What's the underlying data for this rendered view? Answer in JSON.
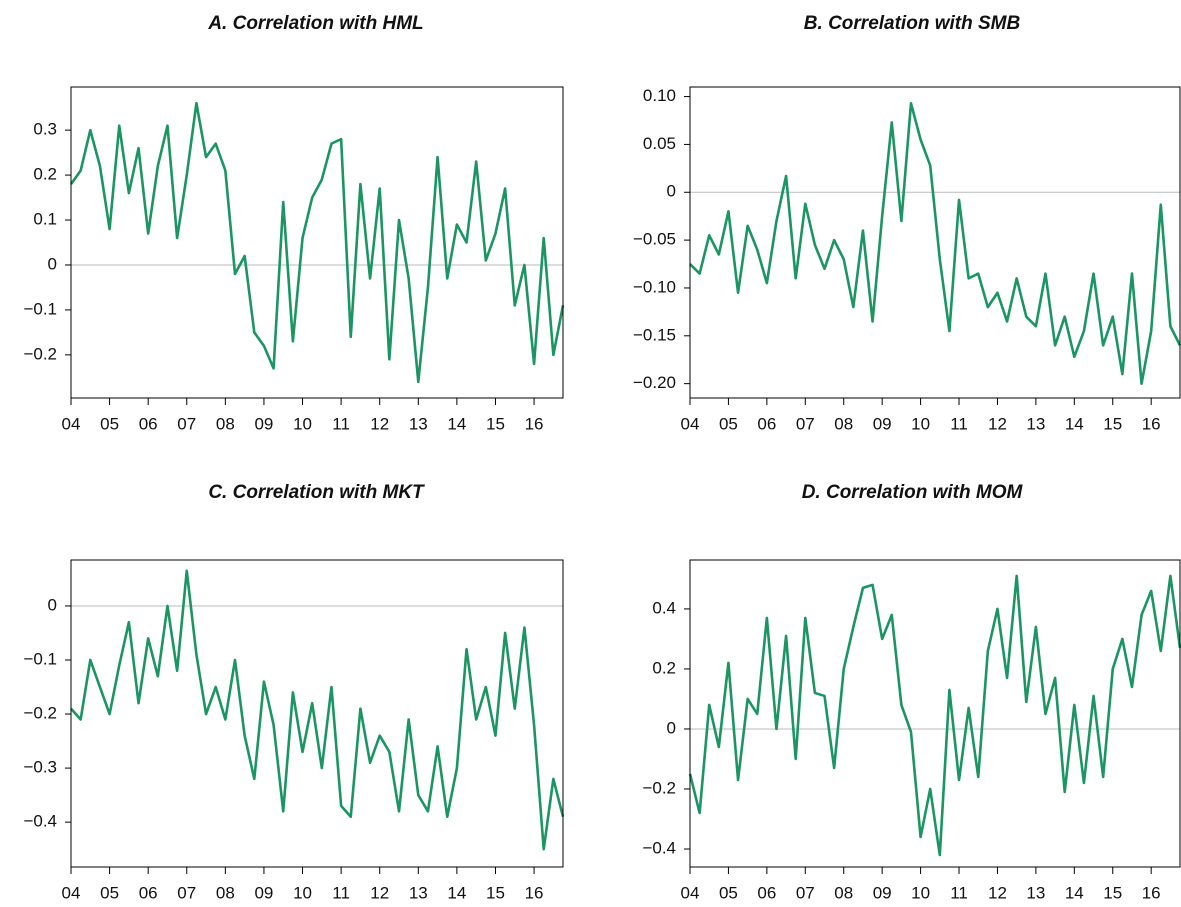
{
  "chart_data": [
    {
      "type": "line",
      "title": "A. Correlation with HML",
      "color": "#1a9563",
      "zero_line": true,
      "x": [
        2004,
        2004.25,
        2004.5,
        2004.75,
        2005,
        2005.25,
        2005.5,
        2005.75,
        2006,
        2006.25,
        2006.5,
        2006.75,
        2007,
        2007.25,
        2007.5,
        2007.75,
        2008,
        2008.25,
        2008.5,
        2008.75,
        2009,
        2009.25,
        2009.5,
        2009.75,
        2010,
        2010.25,
        2010.5,
        2010.75,
        2011,
        2011.25,
        2011.5,
        2011.75,
        2012,
        2012.25,
        2012.5,
        2012.75,
        2013,
        2013.25,
        2013.5,
        2013.75,
        2014,
        2014.25,
        2014.5,
        2014.75,
        2015,
        2015.25,
        2015.5,
        2015.75,
        2016,
        2016.25,
        2016.5,
        2016.75
      ],
      "values": [
        0.18,
        0.21,
        0.3,
        0.22,
        0.08,
        0.31,
        0.16,
        0.26,
        0.07,
        0.22,
        0.31,
        0.06,
        0.2,
        0.36,
        0.24,
        0.27,
        0.21,
        -0.02,
        0.02,
        -0.15,
        -0.18,
        -0.23,
        0.14,
        -0.17,
        0.06,
        0.15,
        0.19,
        0.27,
        0.28,
        -0.16,
        0.18,
        -0.03,
        0.17,
        -0.21,
        0.1,
        -0.03,
        -0.26,
        -0.05,
        0.24,
        -0.03,
        0.09,
        0.05,
        0.23,
        0.01,
        0.07,
        0.17,
        -0.09,
        0.0,
        -0.22,
        0.06,
        -0.2,
        -0.09
      ],
      "xlim": [
        2004,
        2016.75
      ],
      "ylim": [
        -0.296,
        0.396
      ],
      "xticks": [
        {
          "value": 2004,
          "label": "04"
        },
        {
          "value": 2005,
          "label": "05"
        },
        {
          "value": 2006,
          "label": "06"
        },
        {
          "value": 2007,
          "label": "07"
        },
        {
          "value": 2008,
          "label": "08"
        },
        {
          "value": 2009,
          "label": "09"
        },
        {
          "value": 2010,
          "label": "10"
        },
        {
          "value": 2011,
          "label": "11"
        },
        {
          "value": 2012,
          "label": "12"
        },
        {
          "value": 2013,
          "label": "13"
        },
        {
          "value": 2014,
          "label": "14"
        },
        {
          "value": 2015,
          "label": "15"
        },
        {
          "value": 2016,
          "label": "16"
        }
      ],
      "yticks": [
        {
          "value": -0.2,
          "label": "−0.2"
        },
        {
          "value": -0.1,
          "label": "−0.1"
        },
        0,
        0.1,
        0.2,
        0.3
      ]
    },
    {
      "type": "line",
      "title": "B. Correlation with SMB",
      "color": "#1a9563",
      "zero_line": true,
      "x": [
        2004,
        2004.25,
        2004.5,
        2004.75,
        2005,
        2005.25,
        2005.5,
        2005.75,
        2006,
        2006.25,
        2006.5,
        2006.75,
        2007,
        2007.25,
        2007.5,
        2007.75,
        2008,
        2008.25,
        2008.5,
        2008.75,
        2009,
        2009.25,
        2009.5,
        2009.75,
        2010,
        2010.25,
        2010.5,
        2010.75,
        2011,
        2011.25,
        2011.5,
        2011.75,
        2012,
        2012.25,
        2012.5,
        2012.75,
        2013,
        2013.25,
        2013.5,
        2013.75,
        2014,
        2014.25,
        2014.5,
        2014.75,
        2015,
        2015.25,
        2015.5,
        2015.75,
        2016,
        2016.25,
        2016.5,
        2016.75
      ],
      "values": [
        -0.075,
        -0.085,
        -0.045,
        -0.065,
        -0.02,
        -0.105,
        -0.035,
        -0.06,
        -0.095,
        -0.03,
        0.017,
        -0.09,
        -0.012,
        -0.055,
        -0.08,
        -0.05,
        -0.07,
        -0.12,
        -0.04,
        -0.135,
        -0.025,
        0.073,
        -0.03,
        0.093,
        0.055,
        0.028,
        -0.07,
        -0.145,
        -0.008,
        -0.09,
        -0.085,
        -0.12,
        -0.105,
        -0.135,
        -0.09,
        -0.13,
        -0.14,
        -0.085,
        -0.16,
        -0.13,
        -0.172,
        -0.145,
        -0.085,
        -0.16,
        -0.13,
        -0.19,
        -0.085,
        -0.2,
        -0.145,
        -0.013,
        -0.14,
        -0.16
      ],
      "xlim": [
        2004,
        2016.75
      ],
      "ylim": [
        -0.215,
        0.11
      ],
      "xticks": [
        {
          "value": 2004,
          "label": "04"
        },
        {
          "value": 2005,
          "label": "05"
        },
        {
          "value": 2006,
          "label": "06"
        },
        {
          "value": 2007,
          "label": "07"
        },
        {
          "value": 2008,
          "label": "08"
        },
        {
          "value": 2009,
          "label": "09"
        },
        {
          "value": 2010,
          "label": "10"
        },
        {
          "value": 2011,
          "label": "11"
        },
        {
          "value": 2012,
          "label": "12"
        },
        {
          "value": 2013,
          "label": "13"
        },
        {
          "value": 2014,
          "label": "14"
        },
        {
          "value": 2015,
          "label": "15"
        },
        {
          "value": 2016,
          "label": "16"
        }
      ],
      "yticks": [
        {
          "value": -0.2,
          "label": "−0.20"
        },
        {
          "value": -0.15,
          "label": "−0.15"
        },
        {
          "value": -0.1,
          "label": "−0.10"
        },
        {
          "value": -0.05,
          "label": "−0.05"
        },
        0,
        0.05,
        {
          "value": 0.1,
          "label": "0.10"
        }
      ]
    },
    {
      "type": "line",
      "title": "C. Correlation with MKT",
      "color": "#1a9563",
      "zero_line": true,
      "x": [
        2004,
        2004.25,
        2004.5,
        2004.75,
        2005,
        2005.25,
        2005.5,
        2005.75,
        2006,
        2006.25,
        2006.5,
        2006.75,
        2007,
        2007.25,
        2007.5,
        2007.75,
        2008,
        2008.25,
        2008.5,
        2008.75,
        2009,
        2009.25,
        2009.5,
        2009.75,
        2010,
        2010.25,
        2010.5,
        2010.75,
        2011,
        2011.25,
        2011.5,
        2011.75,
        2012,
        2012.25,
        2012.5,
        2012.75,
        2013,
        2013.25,
        2013.5,
        2013.75,
        2014,
        2014.25,
        2014.5,
        2014.75,
        2015,
        2015.25,
        2015.5,
        2015.75,
        2016,
        2016.25,
        2016.5,
        2016.75
      ],
      "values": [
        -0.19,
        -0.21,
        -0.1,
        -0.15,
        -0.2,
        -0.11,
        -0.03,
        -0.18,
        -0.06,
        -0.13,
        0.0,
        -0.12,
        0.065,
        -0.09,
        -0.2,
        -0.15,
        -0.21,
        -0.1,
        -0.24,
        -0.32,
        -0.14,
        -0.22,
        -0.38,
        -0.16,
        -0.27,
        -0.18,
        -0.3,
        -0.15,
        -0.37,
        -0.39,
        -0.19,
        -0.29,
        -0.24,
        -0.27,
        -0.38,
        -0.21,
        -0.35,
        -0.38,
        -0.26,
        -0.39,
        -0.3,
        -0.08,
        -0.21,
        -0.15,
        -0.24,
        -0.05,
        -0.19,
        -0.04,
        -0.22,
        -0.45,
        -0.32,
        -0.39
      ],
      "xlim": [
        2004,
        2016.75
      ],
      "ylim": [
        -0.483,
        0.085
      ],
      "xticks": [
        {
          "value": 2004,
          "label": "04"
        },
        {
          "value": 2005,
          "label": "05"
        },
        {
          "value": 2006,
          "label": "06"
        },
        {
          "value": 2007,
          "label": "07"
        },
        {
          "value": 2008,
          "label": "08"
        },
        {
          "value": 2009,
          "label": "09"
        },
        {
          "value": 2010,
          "label": "10"
        },
        {
          "value": 2011,
          "label": "11"
        },
        {
          "value": 2012,
          "label": "12"
        },
        {
          "value": 2013,
          "label": "13"
        },
        {
          "value": 2014,
          "label": "14"
        },
        {
          "value": 2015,
          "label": "15"
        },
        {
          "value": 2016,
          "label": "16"
        }
      ],
      "yticks": [
        {
          "value": -0.4,
          "label": "−0.4"
        },
        {
          "value": -0.3,
          "label": "−0.3"
        },
        {
          "value": -0.2,
          "label": "−0.2"
        },
        {
          "value": -0.1,
          "label": "−0.1"
        },
        0
      ]
    },
    {
      "type": "line",
      "title": "D. Correlation with MOM",
      "color": "#1a9563",
      "zero_line": true,
      "x": [
        2004,
        2004.25,
        2004.5,
        2004.75,
        2005,
        2005.25,
        2005.5,
        2005.75,
        2006,
        2006.25,
        2006.5,
        2006.75,
        2007,
        2007.25,
        2007.5,
        2007.75,
        2008,
        2008.25,
        2008.5,
        2008.75,
        2009,
        2009.25,
        2009.5,
        2009.75,
        2010,
        2010.25,
        2010.5,
        2010.75,
        2011,
        2011.25,
        2011.5,
        2011.75,
        2012,
        2012.25,
        2012.5,
        2012.75,
        2013,
        2013.25,
        2013.5,
        2013.75,
        2014,
        2014.25,
        2014.5,
        2014.75,
        2015,
        2015.25,
        2015.5,
        2015.75,
        2016,
        2016.25,
        2016.5,
        2016.75
      ],
      "values": [
        -0.15,
        -0.28,
        0.08,
        -0.06,
        0.22,
        -0.17,
        0.1,
        0.05,
        0.37,
        0.0,
        0.31,
        -0.1,
        0.37,
        0.12,
        0.11,
        -0.13,
        0.2,
        0.34,
        0.47,
        0.48,
        0.3,
        0.38,
        0.08,
        -0.01,
        -0.36,
        -0.2,
        -0.42,
        0.13,
        -0.17,
        0.07,
        -0.16,
        0.26,
        0.4,
        0.17,
        0.51,
        0.09,
        0.34,
        0.05,
        0.17,
        -0.21,
        0.08,
        -0.18,
        0.11,
        -0.16,
        0.2,
        0.3,
        0.14,
        0.38,
        0.46,
        0.26,
        0.51,
        0.27
      ],
      "xlim": [
        2004,
        2016.75
      ],
      "ylim": [
        -0.46,
        0.563
      ],
      "xticks": [
        {
          "value": 2004,
          "label": "04"
        },
        {
          "value": 2005,
          "label": "05"
        },
        {
          "value": 2006,
          "label": "06"
        },
        {
          "value": 2007,
          "label": "07"
        },
        {
          "value": 2008,
          "label": "08"
        },
        {
          "value": 2009,
          "label": "09"
        },
        {
          "value": 2010,
          "label": "10"
        },
        {
          "value": 2011,
          "label": "11"
        },
        {
          "value": 2012,
          "label": "12"
        },
        {
          "value": 2013,
          "label": "13"
        },
        {
          "value": 2014,
          "label": "14"
        },
        {
          "value": 2015,
          "label": "15"
        },
        {
          "value": 2016,
          "label": "16"
        }
      ],
      "yticks": [
        {
          "value": -0.4,
          "label": "−0.4"
        },
        {
          "value": -0.2,
          "label": "−0.2"
        },
        0,
        0.2,
        0.4
      ]
    }
  ]
}
